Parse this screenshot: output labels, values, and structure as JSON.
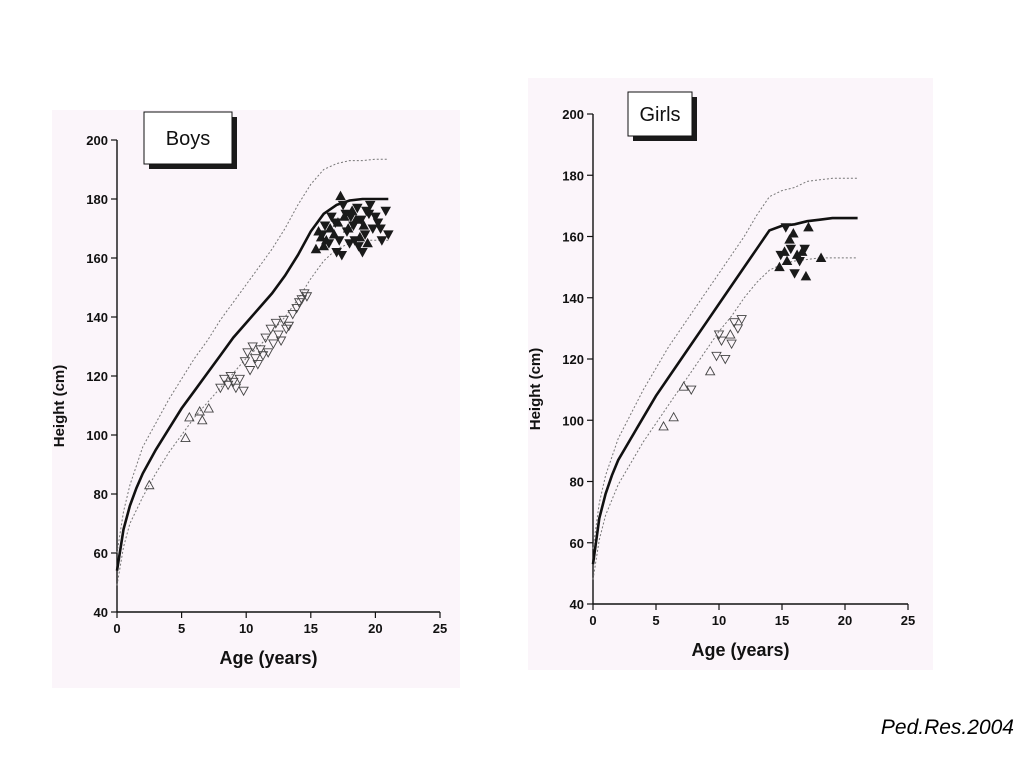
{
  "credit": "Ped.Res.2004",
  "colors": {
    "panel_bg": "#fbf5fa",
    "ink": "#111111",
    "reference": "#777777"
  },
  "chart_data": [
    {
      "type": "scatter",
      "title": "Boys",
      "xlabel": "Age (years)",
      "ylabel": "Height (cm)",
      "xlim": [
        0,
        25
      ],
      "ylim": [
        40,
        200
      ],
      "x_ticks": [
        0,
        5,
        10,
        15,
        20,
        25
      ],
      "y_ticks": [
        40,
        60,
        80,
        100,
        120,
        140,
        160,
        180,
        200
      ],
      "grid": false,
      "reference_curves": [
        {
          "style": "solid",
          "x": [
            0,
            0.5,
            1,
            1.5,
            2,
            3,
            4,
            5,
            6,
            7,
            8,
            9,
            10,
            11,
            12,
            13,
            14,
            15,
            16,
            17,
            18,
            19,
            20,
            21
          ],
          "y": [
            54,
            68,
            76,
            82,
            87,
            95,
            102,
            109,
            115,
            121,
            127,
            133,
            138,
            143,
            148,
            154,
            161,
            169,
            175,
            178,
            179.5,
            180,
            180,
            180
          ]
        },
        {
          "style": "dotted",
          "x": [
            0,
            0.5,
            1,
            2,
            3,
            4,
            5,
            6,
            7,
            8,
            9,
            10,
            11,
            12,
            13,
            14,
            15,
            16,
            17,
            18,
            19,
            20,
            21
          ],
          "y": [
            60,
            74,
            83,
            96,
            104,
            112,
            119,
            126,
            132,
            139,
            145,
            151,
            157,
            163,
            170,
            178,
            185,
            190,
            192,
            193,
            193,
            193.5,
            193.5
          ]
        },
        {
          "style": "dotted",
          "x": [
            0,
            0.5,
            1,
            2,
            3,
            4,
            5,
            6,
            7,
            8,
            9,
            10,
            11,
            12,
            13,
            14,
            15,
            16,
            17,
            18,
            19,
            20,
            21
          ],
          "y": [
            49,
            62,
            70,
            79,
            87,
            94,
            100,
            106,
            111,
            116,
            121,
            126,
            130,
            135,
            140,
            146,
            153,
            159,
            163,
            165,
            166,
            166,
            166
          ]
        }
      ],
      "series": [
        {
          "marker": "triangle-up-open",
          "points": [
            [
              2.5,
              83
            ],
            [
              5.3,
              99
            ],
            [
              5.6,
              106
            ],
            [
              6.4,
              108
            ],
            [
              6.6,
              105
            ],
            [
              7.1,
              109
            ]
          ]
        },
        {
          "marker": "triangle-down-open",
          "points": [
            [
              8.0,
              116
            ],
            [
              8.3,
              119
            ],
            [
              8.6,
              117
            ],
            [
              8.8,
              120
            ],
            [
              9.0,
              118
            ],
            [
              9.2,
              116
            ],
            [
              9.5,
              119
            ],
            [
              9.8,
              115
            ],
            [
              9.9,
              125
            ],
            [
              10.1,
              128
            ],
            [
              10.3,
              122
            ],
            [
              10.5,
              130
            ],
            [
              10.7,
              126
            ],
            [
              10.9,
              124
            ],
            [
              11.1,
              129
            ],
            [
              11.3,
              127
            ],
            [
              11.5,
              133
            ],
            [
              11.7,
              128
            ],
            [
              11.9,
              136
            ],
            [
              12.1,
              131
            ],
            [
              12.3,
              138
            ],
            [
              12.5,
              134
            ],
            [
              12.7,
              132
            ],
            [
              12.9,
              139
            ],
            [
              13.1,
              136
            ],
            [
              13.3,
              137
            ],
            [
              13.6,
              141
            ],
            [
              13.9,
              143
            ],
            [
              14.1,
              145
            ],
            [
              14.3,
              146
            ],
            [
              14.5,
              148
            ],
            [
              14.7,
              147
            ]
          ]
        },
        {
          "marker": "triangle-up-filled",
          "points": [
            [
              15.4,
              163
            ],
            [
              15.8,
              167
            ],
            [
              16.2,
              166
            ],
            [
              16.5,
              170
            ],
            [
              16.8,
              168
            ],
            [
              17.1,
              172
            ],
            [
              17.3,
              181
            ],
            [
              17.6,
              174
            ],
            [
              17.9,
              170
            ],
            [
              18.2,
              176
            ],
            [
              18.5,
              173
            ],
            [
              18.8,
              167
            ],
            [
              19.1,
              171
            ],
            [
              19.4,
              165
            ],
            [
              15.6,
              169
            ],
            [
              16.0,
              164
            ]
          ]
        },
        {
          "marker": "triangle-down-filled",
          "points": [
            [
              15.9,
              168
            ],
            [
              16.4,
              165
            ],
            [
              16.9,
              172
            ],
            [
              17.2,
              166
            ],
            [
              17.5,
              178
            ],
            [
              17.8,
              169
            ],
            [
              18.1,
              174
            ],
            [
              18.3,
              171
            ],
            [
              18.6,
              177
            ],
            [
              18.9,
              173
            ],
            [
              19.2,
              168
            ],
            [
              19.5,
              175
            ],
            [
              19.8,
              170
            ],
            [
              20.2,
              172
            ],
            [
              20.5,
              166
            ],
            [
              20.8,
              176
            ],
            [
              21.0,
              168
            ],
            [
              17.0,
              162
            ],
            [
              17.4,
              161
            ],
            [
              18.0,
              165
            ],
            [
              18.7,
              164
            ],
            [
              19.0,
              162
            ],
            [
              19.6,
              178
            ],
            [
              20.0,
              174
            ],
            [
              16.6,
              174
            ],
            [
              17.7,
              175
            ],
            [
              18.4,
              166
            ],
            [
              19.3,
              176
            ],
            [
              20.4,
              170
            ],
            [
              16.1,
              171
            ]
          ]
        }
      ]
    },
    {
      "type": "scatter",
      "title": "Girls",
      "xlabel": "Age (years)",
      "ylabel": "Height (cm)",
      "xlim": [
        0,
        25
      ],
      "ylim": [
        40,
        200
      ],
      "x_ticks": [
        0,
        5,
        10,
        15,
        20,
        25
      ],
      "y_ticks": [
        40,
        60,
        80,
        100,
        120,
        140,
        160,
        180,
        200
      ],
      "grid": false,
      "reference_curves": [
        {
          "style": "solid",
          "x": [
            0,
            0.5,
            1,
            1.5,
            2,
            3,
            4,
            5,
            6,
            7,
            8,
            9,
            10,
            11,
            12,
            13,
            14,
            15,
            16,
            17,
            18,
            19,
            20,
            21
          ],
          "y": [
            53,
            68,
            76,
            82,
            87,
            94,
            101,
            108,
            114,
            120,
            126,
            132,
            138,
            144,
            150,
            156,
            162,
            163.5,
            164,
            165,
            165.5,
            166,
            166,
            166
          ]
        },
        {
          "style": "dotted",
          "x": [
            0,
            0.5,
            1,
            2,
            3,
            4,
            5,
            6,
            7,
            8,
            9,
            10,
            11,
            12,
            13,
            14,
            15,
            16,
            17,
            18,
            19,
            20,
            21
          ],
          "y": [
            58,
            73,
            82,
            94,
            102,
            110,
            117,
            124,
            130,
            136,
            142,
            148,
            154,
            160,
            167,
            173,
            175,
            176,
            178,
            178.5,
            179,
            179,
            179
          ]
        },
        {
          "style": "dotted",
          "x": [
            0,
            0.5,
            1,
            2,
            3,
            4,
            5,
            6,
            7,
            8,
            9,
            10,
            11,
            12,
            13,
            14,
            15,
            16,
            17,
            18,
            19,
            20,
            21
          ],
          "y": [
            48,
            61,
            69,
            79,
            86,
            93,
            99,
            105,
            111,
            117,
            123,
            129,
            134,
            140,
            145,
            149,
            151,
            152,
            152.5,
            153,
            153,
            153,
            153
          ]
        }
      ],
      "series": [
        {
          "marker": "triangle-up-open",
          "points": [
            [
              5.6,
              98
            ],
            [
              6.4,
              101
            ],
            [
              7.2,
              111
            ],
            [
              9.3,
              116
            ],
            [
              10.9,
              128
            ]
          ]
        },
        {
          "marker": "triangle-down-open",
          "points": [
            [
              7.8,
              110
            ],
            [
              9.8,
              121
            ],
            [
              10.0,
              128
            ],
            [
              10.2,
              126
            ],
            [
              10.5,
              120
            ],
            [
              11.0,
              125
            ],
            [
              11.2,
              132
            ],
            [
              11.5,
              130
            ],
            [
              11.8,
              133
            ]
          ]
        },
        {
          "marker": "triangle-up-filled",
          "points": [
            [
              14.8,
              150
            ],
            [
              15.2,
              155
            ],
            [
              15.6,
              159
            ],
            [
              15.9,
              161
            ],
            [
              16.2,
              154
            ],
            [
              16.6,
              155
            ],
            [
              16.9,
              147
            ],
            [
              17.1,
              163
            ],
            [
              18.1,
              153
            ],
            [
              15.4,
              152
            ]
          ]
        },
        {
          "marker": "triangle-down-filled",
          "points": [
            [
              14.9,
              154
            ],
            [
              15.3,
              163
            ],
            [
              16.0,
              148
            ],
            [
              16.4,
              152
            ],
            [
              16.8,
              156
            ],
            [
              15.7,
              156
            ]
          ]
        }
      ]
    }
  ]
}
